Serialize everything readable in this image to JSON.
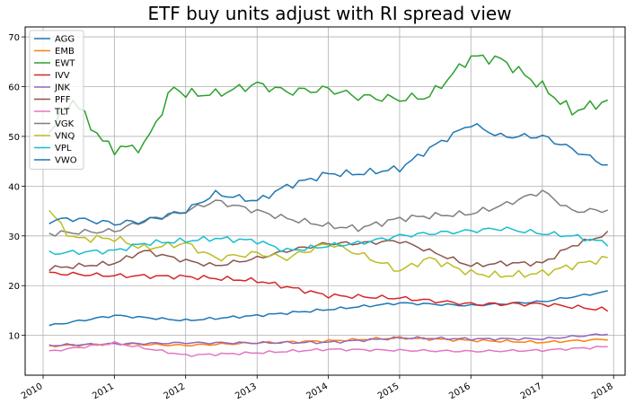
{
  "chart_data": {
    "type": "line",
    "title": "ETF buy units adjust with RI spread view",
    "xlabel": "",
    "ylabel": "",
    "x_ticks": [
      "2010",
      "2011",
      "2012",
      "2013",
      "2014",
      "2015",
      "2016",
      "2017",
      "2018"
    ],
    "x_range": [
      "2009-10-01",
      "2018-03-01"
    ],
    "y_range": [
      2,
      72
    ],
    "y_ticks": [
      10,
      20,
      30,
      40,
      50,
      60,
      70
    ],
    "grid": true,
    "legend_position": "top-left",
    "series": [
      {
        "name": "AGG",
        "color": "#1f77b4",
        "anchors": [
          [
            "2010-02-01",
            12.0
          ],
          [
            "2011-01-01",
            14.0
          ],
          [
            "2012-01-01",
            13.0
          ],
          [
            "2013-01-01",
            14.0
          ],
          [
            "2014-01-01",
            15.2
          ],
          [
            "2015-01-01",
            16.5
          ],
          [
            "2016-01-01",
            16.0
          ],
          [
            "2017-01-01",
            16.8
          ],
          [
            "2018-01-01",
            19.0
          ]
        ]
      },
      {
        "name": "EMB",
        "color": "#ff7f0e",
        "anchors": [
          [
            "2010-02-01",
            7.9
          ],
          [
            "2011-01-01",
            8.3
          ],
          [
            "2012-01-01",
            8.0
          ],
          [
            "2013-01-01",
            8.5
          ],
          [
            "2014-01-01",
            8.9
          ],
          [
            "2015-01-01",
            9.5
          ],
          [
            "2016-01-01",
            9.0
          ],
          [
            "2017-01-01",
            8.6
          ],
          [
            "2018-01-01",
            9.3
          ]
        ]
      },
      {
        "name": "EWT",
        "color": "#2ca02c",
        "anchors": [
          [
            "2010-02-01",
            51.0
          ],
          [
            "2010-06-01",
            57.5
          ],
          [
            "2010-11-01",
            49.0
          ],
          [
            "2011-01-01",
            47.5
          ],
          [
            "2011-06-01",
            48.0
          ],
          [
            "2011-11-01",
            60.0
          ],
          [
            "2012-01-01",
            58.5
          ],
          [
            "2012-06-01",
            58.5
          ],
          [
            "2013-01-01",
            60.5
          ],
          [
            "2013-06-01",
            59.0
          ],
          [
            "2014-01-01",
            59.5
          ],
          [
            "2014-06-01",
            58.0
          ],
          [
            "2015-01-01",
            57.5
          ],
          [
            "2015-06-01",
            58.0
          ],
          [
            "2016-01-01",
            66.0
          ],
          [
            "2016-06-01",
            65.5
          ],
          [
            "2017-01-01",
            60.0
          ],
          [
            "2017-06-01",
            55.0
          ],
          [
            "2018-01-01",
            57.5
          ]
        ]
      },
      {
        "name": "IVV",
        "color": "#d62728",
        "anchors": [
          [
            "2010-02-01",
            22.5
          ],
          [
            "2011-01-01",
            22.0
          ],
          [
            "2012-01-01",
            21.8
          ],
          [
            "2013-01-01",
            21.0
          ],
          [
            "2014-01-01",
            18.0
          ],
          [
            "2015-01-01",
            17.5
          ],
          [
            "2016-01-01",
            16.3
          ],
          [
            "2017-01-01",
            16.3
          ],
          [
            "2018-01-01",
            15.0
          ]
        ]
      },
      {
        "name": "JNK",
        "color": "#9467bd",
        "anchors": [
          [
            "2010-02-01",
            8.0
          ],
          [
            "2011-01-01",
            8.3
          ],
          [
            "2012-01-01",
            8.5
          ],
          [
            "2013-01-01",
            8.5
          ],
          [
            "2014-01-01",
            8.6
          ],
          [
            "2015-01-01",
            9.5
          ],
          [
            "2016-01-01",
            9.3
          ],
          [
            "2017-01-01",
            9.3
          ],
          [
            "2018-01-01",
            10.4
          ]
        ]
      },
      {
        "name": "PFF",
        "color": "#8c564b",
        "anchors": [
          [
            "2010-02-01",
            23.5
          ],
          [
            "2011-01-01",
            24.5
          ],
          [
            "2011-06-01",
            27.0
          ],
          [
            "2012-01-01",
            25.0
          ],
          [
            "2012-06-01",
            24.0
          ],
          [
            "2013-01-01",
            25.5
          ],
          [
            "2013-06-01",
            27.0
          ],
          [
            "2014-01-01",
            28.5
          ],
          [
            "2014-06-01",
            28.5
          ],
          [
            "2015-01-01",
            29.0
          ],
          [
            "2015-06-01",
            27.0
          ],
          [
            "2016-01-01",
            24.0
          ],
          [
            "2016-06-01",
            24.5
          ],
          [
            "2017-01-01",
            24.5
          ],
          [
            "2017-06-01",
            28.0
          ],
          [
            "2018-01-01",
            30.8
          ]
        ]
      },
      {
        "name": "TLT",
        "color": "#e377c2",
        "anchors": [
          [
            "2010-02-01",
            6.8
          ],
          [
            "2011-01-01",
            8.5
          ],
          [
            "2012-01-01",
            6.0
          ],
          [
            "2013-01-01",
            6.5
          ],
          [
            "2014-01-01",
            7.2
          ],
          [
            "2015-01-01",
            7.0
          ],
          [
            "2016-01-01",
            6.8
          ],
          [
            "2017-01-01",
            7.0
          ],
          [
            "2018-01-01",
            7.8
          ]
        ]
      },
      {
        "name": "VGK",
        "color": "#7f7f7f",
        "anchors": [
          [
            "2010-02-01",
            30.5
          ],
          [
            "2011-01-01",
            31.0
          ],
          [
            "2011-06-01",
            33.0
          ],
          [
            "2012-01-01",
            35.0
          ],
          [
            "2012-06-01",
            37.0
          ],
          [
            "2013-01-01",
            35.0
          ],
          [
            "2013-06-01",
            33.5
          ],
          [
            "2014-01-01",
            32.0
          ],
          [
            "2014-06-01",
            31.5
          ],
          [
            "2015-01-01",
            33.5
          ],
          [
            "2015-06-01",
            34.0
          ],
          [
            "2016-01-01",
            34.5
          ],
          [
            "2016-06-01",
            36.0
          ],
          [
            "2017-01-01",
            39.0
          ],
          [
            "2017-06-01",
            35.0
          ],
          [
            "2018-01-01",
            35.2
          ]
        ]
      },
      {
        "name": "VNQ",
        "color": "#bcbd22",
        "anchors": [
          [
            "2010-02-01",
            35.0
          ],
          [
            "2010-06-01",
            29.5
          ],
          [
            "2011-01-01",
            29.5
          ],
          [
            "2011-06-01",
            27.5
          ],
          [
            "2012-01-01",
            28.5
          ],
          [
            "2012-06-01",
            25.5
          ],
          [
            "2013-01-01",
            26.5
          ],
          [
            "2013-06-01",
            25.5
          ],
          [
            "2014-01-01",
            28.5
          ],
          [
            "2014-06-01",
            26.5
          ],
          [
            "2015-01-01",
            23.0
          ],
          [
            "2015-06-01",
            25.5
          ],
          [
            "2016-01-01",
            22.5
          ],
          [
            "2016-06-01",
            22.0
          ],
          [
            "2017-01-01",
            22.5
          ],
          [
            "2017-06-01",
            24.0
          ],
          [
            "2018-01-01",
            25.8
          ]
        ]
      },
      {
        "name": "VPL",
        "color": "#17becf",
        "anchors": [
          [
            "2010-02-01",
            26.5
          ],
          [
            "2011-01-01",
            27.0
          ],
          [
            "2011-06-01",
            28.5
          ],
          [
            "2012-01-01",
            29.0
          ],
          [
            "2012-06-01",
            29.5
          ],
          [
            "2013-01-01",
            29.0
          ],
          [
            "2013-06-01",
            27.0
          ],
          [
            "2014-01-01",
            28.0
          ],
          [
            "2014-06-01",
            28.5
          ],
          [
            "2015-01-01",
            30.0
          ],
          [
            "2015-06-01",
            30.5
          ],
          [
            "2016-01-01",
            31.0
          ],
          [
            "2016-06-01",
            31.5
          ],
          [
            "2017-01-01",
            30.5
          ],
          [
            "2017-06-01",
            30.0
          ],
          [
            "2018-01-01",
            28.3
          ]
        ]
      },
      {
        "name": "VWO",
        "color": "#1f77b4",
        "anchors": [
          [
            "2010-02-01",
            33.0
          ],
          [
            "2010-06-01",
            33.5
          ],
          [
            "2011-01-01",
            32.5
          ],
          [
            "2011-06-01",
            33.0
          ],
          [
            "2012-01-01",
            35.0
          ],
          [
            "2012-06-01",
            38.5
          ],
          [
            "2013-01-01",
            37.0
          ],
          [
            "2013-06-01",
            40.0
          ],
          [
            "2014-01-01",
            42.5
          ],
          [
            "2014-06-01",
            42.5
          ],
          [
            "2015-01-01",
            43.5
          ],
          [
            "2015-06-01",
            47.5
          ],
          [
            "2016-01-01",
            52.5
          ],
          [
            "2016-06-01",
            50.0
          ],
          [
            "2017-01-01",
            50.0
          ],
          [
            "2017-06-01",
            47.5
          ],
          [
            "2018-01-01",
            43.5
          ]
        ]
      }
    ]
  }
}
